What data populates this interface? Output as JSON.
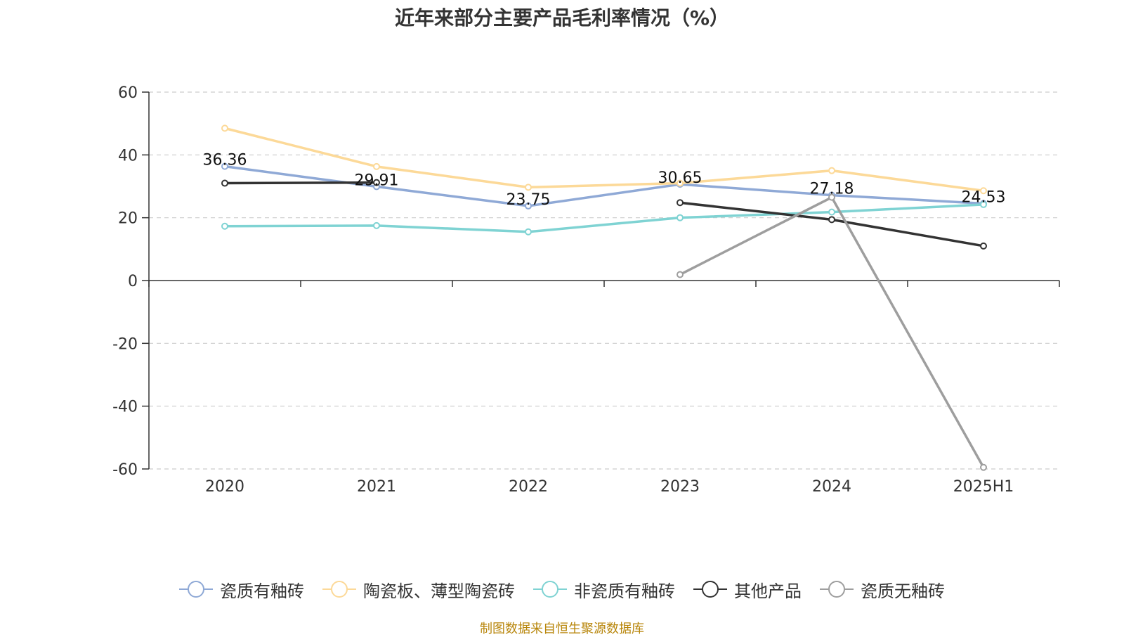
{
  "chart_data": {
    "type": "line",
    "title": "近年来部分主要产品毛利率情况（%）",
    "categories": [
      "2020",
      "2021",
      "2022",
      "2023",
      "2024",
      "2025H1"
    ],
    "ylim": [
      -60,
      60
    ],
    "yticks": [
      "60",
      "40",
      "20",
      "0",
      "-20",
      "-40",
      "-60"
    ],
    "ytick_values": [
      60,
      40,
      20,
      0,
      -20,
      -40,
      -60
    ],
    "grid": true,
    "legend_position": "bottom",
    "series": [
      {
        "name": "瓷质有釉砖",
        "color": "#8fa9d6",
        "values": [
          36.36,
          29.91,
          23.75,
          30.65,
          27.18,
          24.53
        ],
        "labels": [
          "36.36",
          "29.91",
          "23.75",
          "30.65",
          "27.18",
          "24.53"
        ]
      },
      {
        "name": "陶瓷板、薄型陶瓷砖",
        "color": "#fcd998",
        "values": [
          48.5,
          36.3,
          29.7,
          31.0,
          35.0,
          28.6
        ]
      },
      {
        "name": "非瓷质有釉砖",
        "color": "#7fd3d3",
        "values": [
          17.3,
          17.5,
          15.5,
          20.0,
          21.8,
          24.2
        ]
      },
      {
        "name": "其他产品",
        "color": "#333333",
        "values": [
          31.0,
          31.2,
          null,
          24.8,
          19.4,
          11.0
        ]
      },
      {
        "name": "瓷质无釉砖",
        "color": "#9e9e9e",
        "values": [
          null,
          null,
          null,
          1.9,
          26.5,
          -59.5
        ]
      }
    ]
  },
  "source_note": "制图数据来自恒生聚源数据库"
}
